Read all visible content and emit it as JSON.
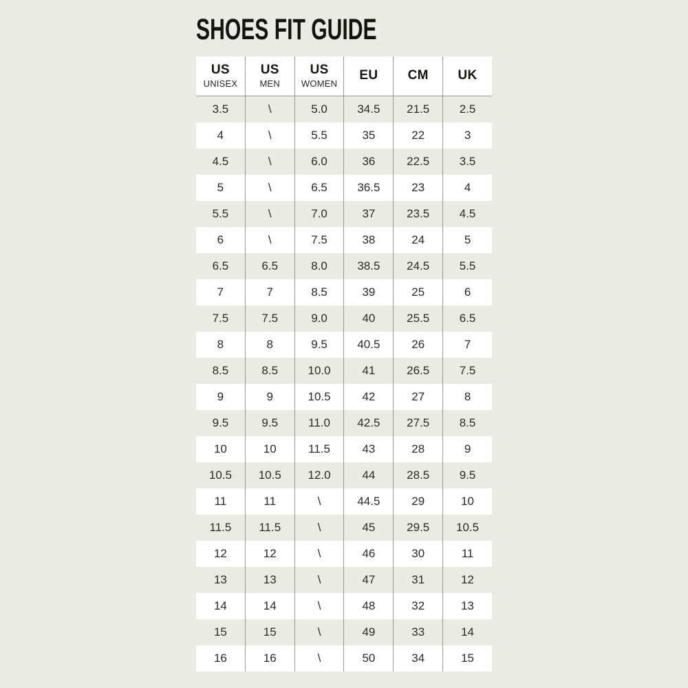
{
  "page": {
    "title": "SHOES FIT GUIDE",
    "background_color": "#ebebe4",
    "line_color": "#98978f",
    "row_alt_color": "#ffffff",
    "text_color": "#2b2a25"
  },
  "table": {
    "columns": [
      {
        "label": "US",
        "sublabel": "UNISEX"
      },
      {
        "label": "US",
        "sublabel": "MEN"
      },
      {
        "label": "US",
        "sublabel": "WOMEN"
      },
      {
        "label": "EU",
        "sublabel": ""
      },
      {
        "label": "CM",
        "sublabel": ""
      },
      {
        "label": "UK",
        "sublabel": ""
      }
    ],
    "rows": [
      [
        "3.5",
        "\\",
        "5.0",
        "34.5",
        "21.5",
        "2.5"
      ],
      [
        "4",
        "\\",
        "5.5",
        "35",
        "22",
        "3"
      ],
      [
        "4.5",
        "\\",
        "6.0",
        "36",
        "22.5",
        "3.5"
      ],
      [
        "5",
        "\\",
        "6.5",
        "36.5",
        "23",
        "4"
      ],
      [
        "5.5",
        "\\",
        "7.0",
        "37",
        "23.5",
        "4.5"
      ],
      [
        "6",
        "\\",
        "7.5",
        "38",
        "24",
        "5"
      ],
      [
        "6.5",
        "6.5",
        "8.0",
        "38.5",
        "24.5",
        "5.5"
      ],
      [
        "7",
        "7",
        "8.5",
        "39",
        "25",
        "6"
      ],
      [
        "7.5",
        "7.5",
        "9.0",
        "40",
        "25.5",
        "6.5"
      ],
      [
        "8",
        "8",
        "9.5",
        "40.5",
        "26",
        "7"
      ],
      [
        "8.5",
        "8.5",
        "10.0",
        "41",
        "26.5",
        "7.5"
      ],
      [
        "9",
        "9",
        "10.5",
        "42",
        "27",
        "8"
      ],
      [
        "9.5",
        "9.5",
        "11.0",
        "42.5",
        "27.5",
        "8.5"
      ],
      [
        "10",
        "10",
        "11.5",
        "43",
        "28",
        "9"
      ],
      [
        "10.5",
        "10.5",
        "12.0",
        "44",
        "28.5",
        "9.5"
      ],
      [
        "11",
        "11",
        "\\",
        "44.5",
        "29",
        "10"
      ],
      [
        "11.5",
        "11.5",
        "\\",
        "45",
        "29.5",
        "10.5"
      ],
      [
        "12",
        "12",
        "\\",
        "46",
        "30",
        "11"
      ],
      [
        "13",
        "13",
        "\\",
        "47",
        "31",
        "12"
      ],
      [
        "14",
        "14",
        "\\",
        "48",
        "32",
        "13"
      ],
      [
        "15",
        "15",
        "\\",
        "49",
        "33",
        "14"
      ],
      [
        "16",
        "16",
        "\\",
        "50",
        "34",
        "15"
      ]
    ]
  }
}
